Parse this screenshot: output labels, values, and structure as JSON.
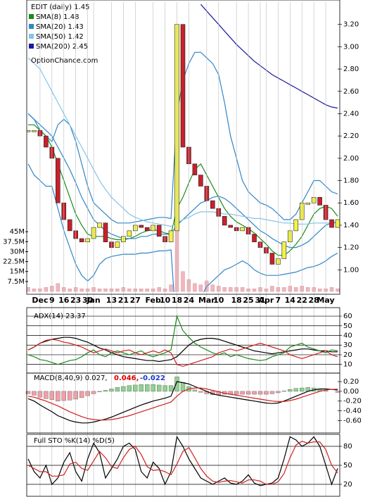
{
  "chart_data": [
    {
      "type": "candlestick",
      "title": "EDIT (daily) 1.45",
      "watermark": "OptionChance.com",
      "categories": [
        null,
        null,
        "Dec",
        null,
        "9",
        null,
        "16",
        null,
        "23",
        null,
        "30",
        "Jan",
        null,
        null,
        "13",
        null,
        "21",
        null,
        "27",
        null,
        null,
        "Feb",
        null,
        "10",
        null,
        "18",
        null,
        "24",
        null,
        null,
        "Mar",
        null,
        "10",
        null,
        null,
        "18",
        null,
        "25",
        null,
        "31",
        "Apr",
        null,
        "7",
        null,
        "14",
        null,
        "22",
        null,
        "28",
        null,
        "May",
        null,
        null
      ],
      "close": [
        2.25,
        2.25,
        2.2,
        2.1,
        2.0,
        1.6,
        1.45,
        1.35,
        1.28,
        1.25,
        1.28,
        1.38,
        1.42,
        1.25,
        1.2,
        1.25,
        1.3,
        1.35,
        1.4,
        1.38,
        1.35,
        1.4,
        1.3,
        1.25,
        1.35,
        3.2,
        2.1,
        1.95,
        1.85,
        1.75,
        1.62,
        1.55,
        1.48,
        1.4,
        1.38,
        1.35,
        1.38,
        1.32,
        1.25,
        1.2,
        1.15,
        1.05,
        1.1,
        1.25,
        1.35,
        1.45,
        1.6,
        1.6,
        1.65,
        1.58,
        1.45,
        1.38,
        1.45
      ],
      "up_color": "#f2f24a",
      "down_color": "#c8202a",
      "series": [
        {
          "name": "SMA(8) 1.48",
          "color": "#1a8a1a",
          "values": [
            2.3,
            2.3,
            2.25,
            2.2,
            2.1,
            1.95,
            1.8,
            1.65,
            1.5,
            1.4,
            1.32,
            1.3,
            1.3,
            1.3,
            1.28,
            1.27,
            1.27,
            1.28,
            1.3,
            1.33,
            1.35,
            1.36,
            1.35,
            1.33,
            1.32,
            1.55,
            1.65,
            1.78,
            1.9,
            1.95,
            1.85,
            1.75,
            1.65,
            1.55,
            1.48,
            1.43,
            1.4,
            1.37,
            1.33,
            1.28,
            1.23,
            1.17,
            1.13,
            1.13,
            1.17,
            1.23,
            1.3,
            1.4,
            1.5,
            1.55,
            1.57,
            1.55,
            1.48
          ]
        },
        {
          "name": "SMA(20) 1.43",
          "color": "#2f86c8",
          "values": [
            2.4,
            2.35,
            2.3,
            2.25,
            2.2,
            2.1,
            2.0,
            1.9,
            1.78,
            1.65,
            1.55,
            1.45,
            1.4,
            1.35,
            1.32,
            1.3,
            1.28,
            1.28,
            1.28,
            1.3,
            1.3,
            1.32,
            1.32,
            1.32,
            1.32,
            1.4,
            1.45,
            1.5,
            1.55,
            1.6,
            1.62,
            1.65,
            1.66,
            1.64,
            1.6,
            1.55,
            1.5,
            1.45,
            1.4,
            1.35,
            1.32,
            1.28,
            1.25,
            1.22,
            1.2,
            1.2,
            1.22,
            1.25,
            1.3,
            1.35,
            1.4,
            1.42,
            1.43
          ]
        },
        {
          "name": "SMA(50) 1.42",
          "color": "#82c4ea",
          "values": [
            2.9,
            2.85,
            2.8,
            2.7,
            2.6,
            2.5,
            2.4,
            2.3,
            2.2,
            2.1,
            2.0,
            1.9,
            1.8,
            1.72,
            1.65,
            1.6,
            1.55,
            1.5,
            1.47,
            1.45,
            1.43,
            1.42,
            1.41,
            1.4,
            1.39,
            1.42,
            1.45,
            1.47,
            1.5,
            1.52,
            1.52,
            1.52,
            1.51,
            1.5,
            1.5,
            1.49,
            1.48,
            1.47,
            1.46,
            1.46,
            1.45,
            1.44,
            1.43,
            1.42,
            1.42,
            1.41,
            1.41,
            1.41,
            1.42,
            1.42,
            1.42,
            1.42,
            1.42
          ]
        },
        {
          "name": "SMA(200) 2.45",
          "color": "#1a1aa0",
          "values": [
            null,
            null,
            null,
            null,
            null,
            null,
            null,
            null,
            null,
            null,
            null,
            null,
            null,
            null,
            null,
            null,
            null,
            null,
            null,
            null,
            null,
            null,
            null,
            null,
            null,
            null,
            null,
            null,
            null,
            3.38,
            3.32,
            3.26,
            3.2,
            3.14,
            3.08,
            3.02,
            2.97,
            2.92,
            2.87,
            2.83,
            2.79,
            2.75,
            2.72,
            2.69,
            2.66,
            2.63,
            2.6,
            2.57,
            2.54,
            2.51,
            2.48,
            2.46,
            2.45
          ]
        }
      ],
      "bands": {
        "color": "#2f86c8",
        "upper": [
          2.4,
          2.35,
          2.25,
          2.2,
          2.15,
          2.3,
          2.35,
          2.3,
          2.15,
          1.95,
          1.75,
          1.6,
          1.55,
          1.5,
          1.45,
          1.42,
          1.42,
          1.42,
          1.43,
          1.44,
          1.45,
          1.46,
          1.47,
          1.47,
          1.46,
          2.4,
          2.7,
          2.85,
          2.95,
          2.95,
          2.9,
          2.85,
          2.75,
          2.5,
          2.2,
          2.0,
          1.8,
          1.7,
          1.65,
          1.6,
          1.58,
          1.55,
          1.5,
          1.45,
          1.45,
          1.5,
          1.6,
          1.7,
          1.8,
          1.8,
          1.75,
          1.7,
          1.68
        ],
        "lower": [
          1.95,
          1.85,
          1.8,
          1.75,
          1.75,
          1.55,
          1.35,
          1.2,
          1.05,
          0.95,
          0.9,
          0.95,
          1.05,
          1.1,
          1.12,
          1.13,
          1.14,
          1.14,
          1.14,
          1.15,
          1.15,
          1.16,
          1.17,
          1.17,
          1.18,
          0.4,
          0.45,
          0.55,
          0.65,
          0.75,
          0.85,
          0.9,
          0.95,
          1.0,
          1.02,
          1.05,
          1.08,
          1.05,
          1.0,
          0.97,
          0.95,
          0.95,
          0.95,
          0.96,
          0.97,
          0.98,
          1.0,
          1.02,
          1.03,
          1.05,
          1.08,
          1.12,
          1.15
        ]
      },
      "ylim": [
        0.8,
        3.4
      ],
      "yticks": [
        {
          "value": 1.0,
          "label": "1.00"
        },
        {
          "value": 1.2,
          "label": "1.20"
        },
        {
          "value": 1.4,
          "label": "1.40"
        },
        {
          "value": 1.6,
          "label": "1.60"
        },
        {
          "value": 1.8,
          "label": "1.80"
        },
        {
          "value": 2.0,
          "label": "2.00"
        },
        {
          "value": 2.2,
          "label": "2.20"
        },
        {
          "value": 2.4,
          "label": "2.40"
        },
        {
          "value": 2.6,
          "label": "2.60"
        },
        {
          "value": 2.8,
          "label": "2.80"
        },
        {
          "value": 3.0,
          "label": "3.00"
        },
        {
          "value": 3.2,
          "label": "3.20"
        }
      ],
      "grid": false,
      "volume": {
        "color": "#f2b6c0",
        "values": [
          3,
          2,
          2,
          3,
          4,
          6,
          3,
          2,
          3,
          2,
          2,
          3,
          2,
          2,
          2,
          2,
          3,
          2,
          2,
          2,
          2,
          2,
          3,
          2,
          5,
          47,
          15,
          9,
          6,
          5,
          8,
          5,
          4,
          3,
          3,
          3,
          3,
          2,
          2,
          3,
          2,
          4,
          3,
          3,
          4,
          3,
          4,
          3,
          3,
          2,
          2,
          3,
          2
        ],
        "ylim": [
          0,
          48.8
        ],
        "yticks": [
          {
            "value": 7.5,
            "label": "7.5M"
          },
          {
            "value": 15,
            "label": "15M"
          },
          {
            "value": 22.5,
            "label": "22.5M"
          },
          {
            "value": 30,
            "label": "30M"
          },
          {
            "value": 37.5,
            "label": "37.5M"
          },
          {
            "value": 45,
            "label": "45M"
          }
        ]
      }
    },
    {
      "type": "line",
      "title": "ADX(14) 23.37",
      "ylim": [
        1,
        66.6
      ],
      "yticks": [
        10,
        20,
        30,
        40,
        50,
        60
      ],
      "grid": true,
      "series": [
        {
          "color": "#000000",
          "values": [
            25,
            28,
            32,
            34,
            36,
            37,
            38,
            38,
            37,
            35,
            33,
            30,
            27,
            25,
            22,
            20,
            18,
            17,
            16,
            15,
            14,
            14,
            13,
            14,
            15,
            18,
            24,
            30,
            34,
            36,
            37,
            37,
            36,
            34,
            32,
            30,
            28,
            26,
            24,
            23,
            22,
            21,
            22,
            23,
            24,
            25,
            26,
            26,
            25,
            24,
            24,
            23,
            23
          ]
        },
        {
          "color": "#1a8a1a",
          "values": [
            20,
            18,
            15,
            14,
            12,
            10,
            12,
            14,
            15,
            18,
            22,
            25,
            20,
            18,
            22,
            24,
            22,
            20,
            22,
            24,
            20,
            18,
            20,
            22,
            25,
            60,
            45,
            38,
            32,
            28,
            25,
            22,
            20,
            22,
            18,
            20,
            18,
            16,
            15,
            14,
            15,
            18,
            20,
            22,
            28,
            30,
            32,
            28,
            26,
            24,
            22,
            25,
            24
          ]
        },
        {
          "color": "#d02020",
          "values": [
            25,
            28,
            32,
            35,
            36,
            35,
            33,
            32,
            30,
            28,
            25,
            22,
            24,
            26,
            24,
            22,
            24,
            25,
            22,
            20,
            22,
            24,
            22,
            25,
            22,
            10,
            8,
            10,
            12,
            14,
            16,
            18,
            22,
            24,
            26,
            24,
            26,
            28,
            30,
            32,
            30,
            28,
            26,
            24,
            20,
            18,
            16,
            18,
            20,
            22,
            24,
            20,
            18
          ]
        }
      ]
    },
    {
      "type": "macd",
      "title": "MACD(8,40,9) 0.027,",
      "signal_label": "0.046,",
      "hist_label": "-0.022",
      "ylim": [
        -0.855,
        0.375
      ],
      "yticks": [
        {
          "value": 0.2,
          "label": "0.20"
        },
        {
          "value": 0,
          "label": "0.00"
        },
        {
          "value": -0.2,
          "label": "-0.20"
        },
        {
          "value": -0.4,
          "label": "-0.40"
        },
        {
          "value": -0.6,
          "label": "-0.60"
        }
      ],
      "grid": false,
      "hist": {
        "pos_color": "#8fd28f",
        "neg_color": "#f0a0a8",
        "values": [
          -0.05,
          -0.08,
          -0.12,
          -0.15,
          -0.17,
          -0.2,
          -0.19,
          -0.18,
          -0.16,
          -0.13,
          -0.09,
          -0.05,
          -0.01,
          0.02,
          0.05,
          0.08,
          0.1,
          0.12,
          0.13,
          0.14,
          0.14,
          0.14,
          0.13,
          0.12,
          0.12,
          0.3,
          0.18,
          0.1,
          0.03,
          -0.02,
          -0.05,
          -0.07,
          -0.07,
          -0.06,
          -0.06,
          -0.06,
          -0.06,
          -0.06,
          -0.06,
          -0.06,
          -0.06,
          -0.05,
          -0.03,
          0.01,
          0.04,
          0.06,
          0.07,
          0.08,
          0.07,
          0.05,
          0.02,
          0.0,
          -0.022
        ]
      },
      "series": [
        {
          "color": "#000000",
          "values": [
            -0.15,
            -0.2,
            -0.28,
            -0.35,
            -0.42,
            -0.5,
            -0.55,
            -0.6,
            -0.63,
            -0.65,
            -0.65,
            -0.63,
            -0.6,
            -0.57,
            -0.53,
            -0.48,
            -0.43,
            -0.38,
            -0.33,
            -0.28,
            -0.24,
            -0.2,
            -0.17,
            -0.14,
            -0.1,
            0.2,
            0.18,
            0.15,
            0.1,
            0.05,
            0.0,
            -0.05,
            -0.08,
            -0.1,
            -0.12,
            -0.14,
            -0.16,
            -0.18,
            -0.2,
            -0.22,
            -0.24,
            -0.25,
            -0.24,
            -0.2,
            -0.15,
            -0.1,
            -0.05,
            0.0,
            0.03,
            0.05,
            0.05,
            0.04,
            0.027
          ]
        },
        {
          "color": "#d02020",
          "values": [
            -0.1,
            -0.12,
            -0.16,
            -0.2,
            -0.25,
            -0.3,
            -0.36,
            -0.42,
            -0.47,
            -0.52,
            -0.56,
            -0.58,
            -0.59,
            -0.59,
            -0.58,
            -0.56,
            -0.53,
            -0.5,
            -0.46,
            -0.42,
            -0.38,
            -0.34,
            -0.3,
            -0.26,
            -0.22,
            -0.1,
            0.0,
            0.05,
            0.07,
            0.07,
            0.05,
            0.02,
            -0.01,
            -0.04,
            -0.06,
            -0.08,
            -0.1,
            -0.12,
            -0.14,
            -0.16,
            -0.18,
            -0.2,
            -0.21,
            -0.21,
            -0.19,
            -0.16,
            -0.12,
            -0.08,
            -0.04,
            0.0,
            0.03,
            0.04,
            0.046
          ]
        }
      ]
    },
    {
      "type": "line",
      "title": "Full STO %K(14) %D(5)",
      "ylim": [
        0,
        98.9
      ],
      "yticks": [
        20,
        50,
        80
      ],
      "grid": true,
      "series": [
        {
          "color": "#000000",
          "values": [
            60,
            40,
            30,
            50,
            20,
            30,
            55,
            70,
            40,
            25,
            60,
            85,
            70,
            30,
            45,
            60,
            80,
            85,
            75,
            40,
            30,
            55,
            45,
            20,
            40,
            95,
            80,
            60,
            45,
            30,
            25,
            20,
            25,
            30,
            22,
            20,
            25,
            35,
            22,
            18,
            20,
            22,
            30,
            60,
            95,
            90,
            80,
            85,
            95,
            80,
            50,
            20,
            45
          ]
        },
        {
          "color": "#d02020",
          "values": [
            50,
            45,
            40,
            40,
            33,
            33,
            35,
            52,
            55,
            45,
            42,
            57,
            72,
            62,
            48,
            45,
            62,
            75,
            80,
            67,
            48,
            42,
            43,
            40,
            35,
            52,
            72,
            78,
            62,
            45,
            33,
            25,
            23,
            25,
            26,
            24,
            22,
            27,
            27,
            25,
            20,
            20,
            24,
            37,
            62,
            82,
            88,
            85,
            87,
            87,
            75,
            50,
            38
          ]
        }
      ]
    }
  ]
}
